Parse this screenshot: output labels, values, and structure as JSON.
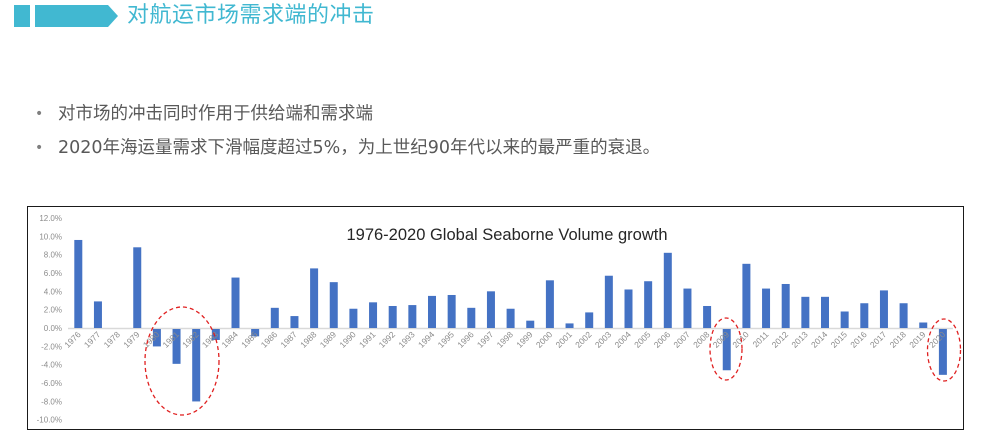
{
  "header": {
    "title": "对航运市场需求端的冲击",
    "accent_color": "#41b8d1"
  },
  "bullets": [
    "对市场的冲击同时作用于供给端和需求端",
    "2020年海运量需求下滑幅度超过5%，为上世纪90年代以来的最严重的衰退。"
  ],
  "colors": {
    "bar": "#4472c4",
    "axis_text": "#8c8c8c",
    "baseline": "#d9d9d9",
    "highlight": "#e02020",
    "bullet_text": "#595959"
  },
  "chart_data": {
    "type": "bar",
    "title": "1976-2020  Global Seaborne Volume growth",
    "xlabel": "",
    "ylabel": "",
    "ylim": [
      -10.0,
      12.0
    ],
    "yticks": [
      "12.0%",
      "10.0%",
      "8.0%",
      "6.0%",
      "4.0%",
      "2.0%",
      "0.0%",
      "-2.0%",
      "-4.0%",
      "-6.0%",
      "-8.0%",
      "-10.0%"
    ],
    "grid": false,
    "legend": null,
    "categories": [
      "1976",
      "1977",
      "1978",
      "1979",
      "1980",
      "1981",
      "1982",
      "1983",
      "1984",
      "1985",
      "1986",
      "1987",
      "1988",
      "1989",
      "1990",
      "1991",
      "1992",
      "1993",
      "1994",
      "1995",
      "1996",
      "1997",
      "1998",
      "1999",
      "2000",
      "2001",
      "2002",
      "2003",
      "2004",
      "2005",
      "2006",
      "2007",
      "2008",
      "2009",
      "2010",
      "2011",
      "2012",
      "2013",
      "2014",
      "2015",
      "2016",
      "2017",
      "2018",
      "2019",
      "2020"
    ],
    "values": [
      9.6,
      2.9,
      0.0,
      8.8,
      -1.9,
      -3.8,
      -7.9,
      -1.2,
      5.5,
      -0.8,
      2.2,
      1.3,
      6.5,
      5.0,
      2.1,
      2.8,
      2.4,
      2.5,
      3.5,
      3.6,
      2.2,
      4.0,
      2.1,
      0.8,
      5.2,
      0.5,
      1.7,
      5.7,
      4.2,
      5.1,
      8.2,
      4.3,
      2.4,
      -4.5,
      7.0,
      4.3,
      4.8,
      3.4,
      3.4,
      1.8,
      2.7,
      4.1,
      2.7,
      0.6,
      -5.0
    ],
    "unit": "%",
    "annotations": [
      {
        "type": "dashed-ellipse",
        "highlights": [
          "1980",
          "1981",
          "1982",
          "1983"
        ]
      },
      {
        "type": "dashed-ellipse",
        "highlights": [
          "2009"
        ]
      },
      {
        "type": "dashed-ellipse",
        "highlights": [
          "2020"
        ]
      }
    ]
  }
}
